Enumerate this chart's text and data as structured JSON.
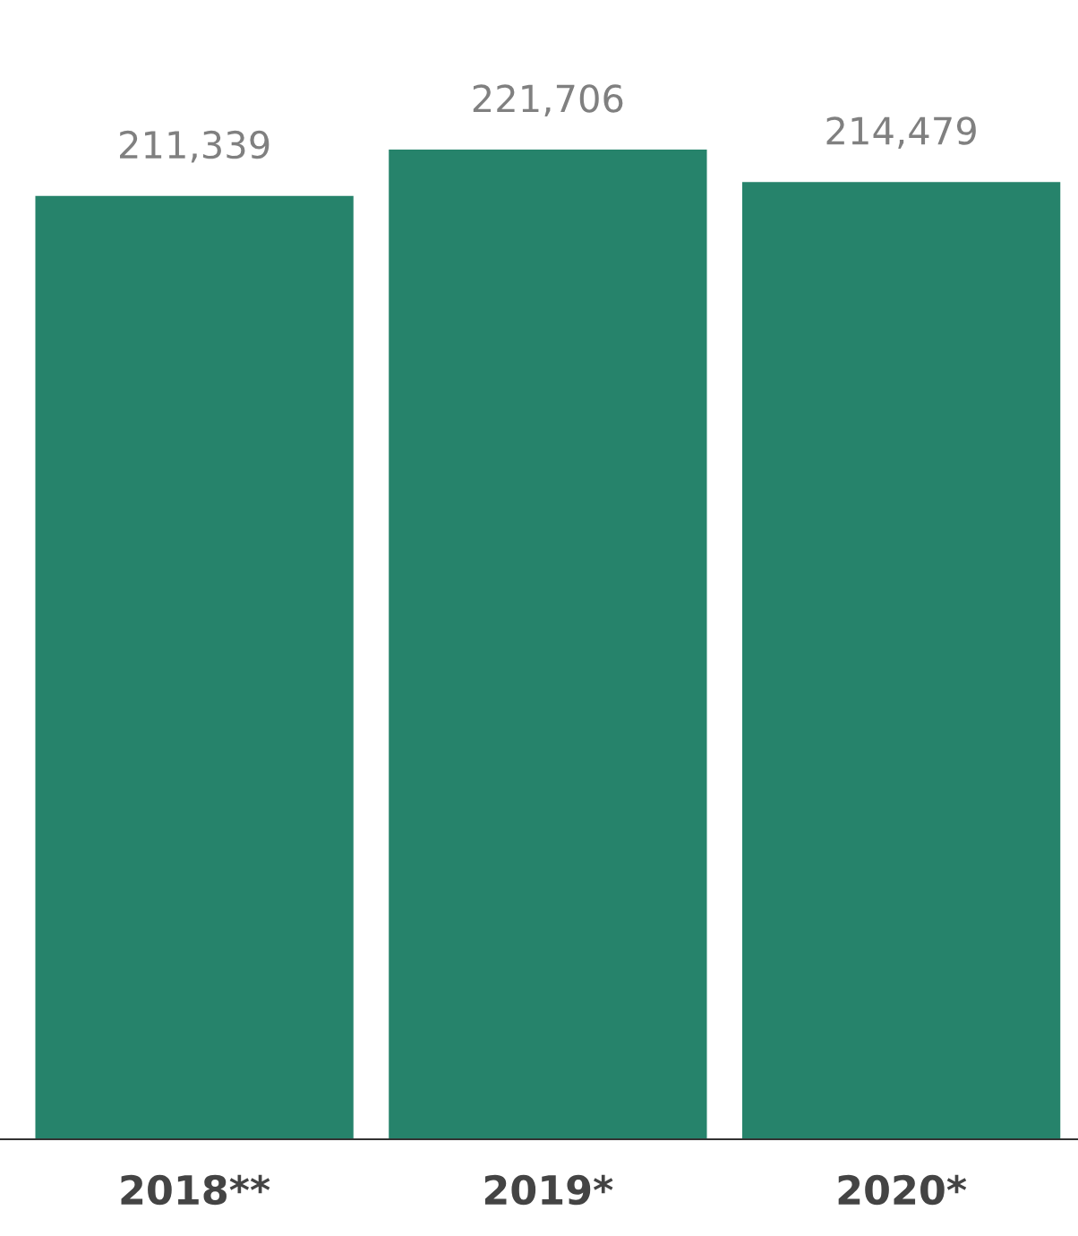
{
  "chart_data": {
    "type": "bar",
    "categories": [
      "2018**",
      "2019*",
      "2020*"
    ],
    "values": [
      211339,
      221706,
      214479
    ],
    "value_labels": [
      "211,339",
      "221,706",
      "214,479"
    ],
    "color": "#26836b",
    "grid": false,
    "legend": false
  }
}
